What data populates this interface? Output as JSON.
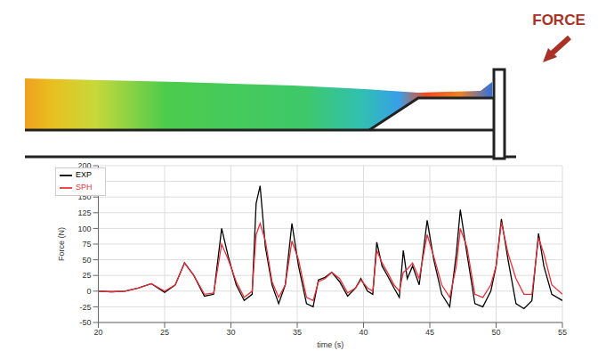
{
  "chart_data": {
    "type": "line",
    "annotation": "FORCE",
    "x_label": "time (s)",
    "y_label": "Force (N)",
    "x": [
      20,
      21,
      22,
      23,
      24,
      25,
      25.8,
      26.5,
      27.2,
      28,
      28.7,
      29.3,
      29.8,
      30.4,
      31,
      31.6,
      31.9,
      32.2,
      32.6,
      33.1,
      33.6,
      34.1,
      34.6,
      35.1,
      35.7,
      36.2,
      36.6,
      37.1,
      37.6,
      38.2,
      38.8,
      39.4,
      39.8,
      40.3,
      40.7,
      41,
      41.4,
      41.8,
      42.3,
      42.7,
      43,
      43.3,
      43.7,
      44.2,
      44.8,
      45.3,
      45.9,
      46.5,
      47,
      47.3,
      47.8,
      48.4,
      49,
      49.6,
      50,
      50.4,
      50.9,
      51.5,
      52.1,
      52.7,
      53.2,
      53.6,
      54.2,
      55
    ],
    "series": [
      {
        "name": "EXP",
        "color": "#000000",
        "values": [
          0,
          -1,
          0,
          5,
          12,
          -2,
          10,
          45,
          25,
          -8,
          -5,
          100,
          55,
          10,
          -15,
          -5,
          140,
          168,
          70,
          10,
          -20,
          10,
          108,
          40,
          -20,
          -25,
          18,
          22,
          30,
          15,
          -8,
          5,
          20,
          0,
          -5,
          78,
          40,
          25,
          5,
          -10,
          65,
          20,
          40,
          10,
          113,
          50,
          -5,
          -25,
          60,
          130,
          60,
          -20,
          -25,
          0,
          40,
          115,
          50,
          -20,
          -28,
          -15,
          92,
          40,
          -5,
          -15
        ]
      },
      {
        "name": "SPH",
        "color": "#e8303a",
        "values": [
          0,
          -1,
          0,
          5,
          12,
          0,
          10,
          45,
          25,
          -5,
          -3,
          75,
          50,
          15,
          -10,
          0,
          90,
          108,
          80,
          15,
          -10,
          10,
          80,
          50,
          -10,
          -15,
          15,
          20,
          30,
          20,
          -3,
          5,
          18,
          5,
          0,
          65,
          45,
          30,
          10,
          0,
          30,
          35,
          45,
          20,
          90,
          55,
          10,
          -10,
          40,
          100,
          70,
          -5,
          -10,
          10,
          40,
          110,
          60,
          20,
          -5,
          -5,
          85,
          60,
          10,
          -5
        ]
      }
    ],
    "xlim": [
      20,
      55
    ],
    "xticks": [
      20,
      25,
      30,
      35,
      40,
      45,
      50,
      55
    ],
    "ylim": [
      -50,
      200
    ],
    "yticks": [
      -50,
      -25,
      0,
      25,
      50,
      75,
      100,
      125,
      150,
      175,
      200
    ],
    "grid": true,
    "legend": "top-left"
  }
}
